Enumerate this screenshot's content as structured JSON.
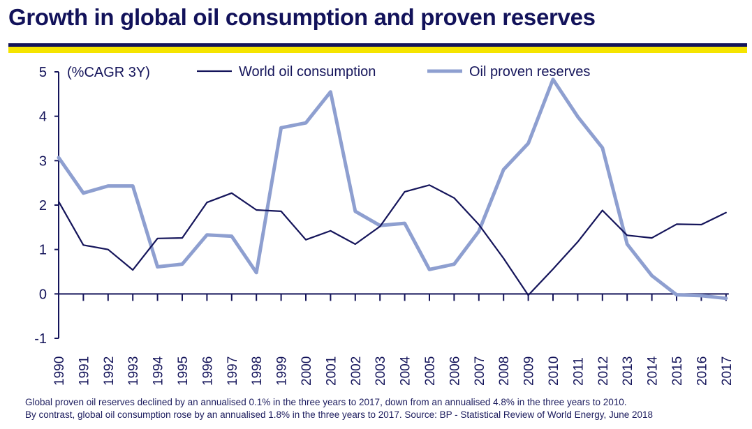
{
  "header": {
    "title": "Growth in global oil consumption and proven reserves"
  },
  "colors": {
    "navy": "#14145a",
    "yellow": "#f5e400",
    "consumption": "#14145a",
    "reserves": "#8e9fd0"
  },
  "footer": {
    "line1": "Global proven oil reserves declined by an annualised 0.1% in the three years to 2017, down from an annualised 4.8% in the three years to 2010.",
    "line2": "By contrast, global oil consumption rose by an annualised 1.8% in the three years to 2017.    Source: BP - Statistical Review of World Energy, June 2018"
  },
  "chart_data": {
    "type": "line",
    "unit_label": "(%CAGR 3Y)",
    "ylim": [
      -1,
      5
    ],
    "yticks": [
      "-1",
      "0",
      "1",
      "2",
      "3",
      "4",
      "5"
    ],
    "legend_placement": "top",
    "grid": false,
    "x": [
      "1990",
      "1991",
      "1992",
      "1993",
      "1994",
      "1995",
      "1996",
      "1997",
      "1998",
      "1999",
      "2000",
      "2001",
      "2002",
      "2003",
      "2004",
      "2005",
      "2006",
      "2007",
      "2008",
      "2009",
      "2010",
      "2011",
      "2012",
      "2013",
      "2014",
      "2015",
      "2016",
      "2017"
    ],
    "series": [
      {
        "name": "World oil consumption",
        "color": "#14145a",
        "values": [
          2.08,
          1.1,
          1.0,
          0.54,
          1.25,
          1.26,
          2.06,
          2.27,
          1.89,
          1.86,
          1.22,
          1.42,
          1.12,
          1.52,
          2.3,
          2.45,
          2.16,
          1.56,
          0.8,
          -0.03,
          0.56,
          1.17,
          1.88,
          1.32,
          1.26,
          1.57,
          1.56,
          1.83
        ]
      },
      {
        "name": "Oil proven reserves",
        "color": "#8e9fd0",
        "values": [
          3.07,
          2.27,
          2.43,
          2.43,
          0.61,
          0.67,
          1.33,
          1.3,
          0.48,
          3.74,
          3.85,
          4.55,
          1.86,
          1.54,
          1.59,
          0.55,
          0.67,
          1.41,
          2.8,
          3.39,
          4.83,
          3.99,
          3.29,
          1.12,
          0.41,
          -0.02,
          -0.04,
          -0.1
        ]
      }
    ]
  }
}
